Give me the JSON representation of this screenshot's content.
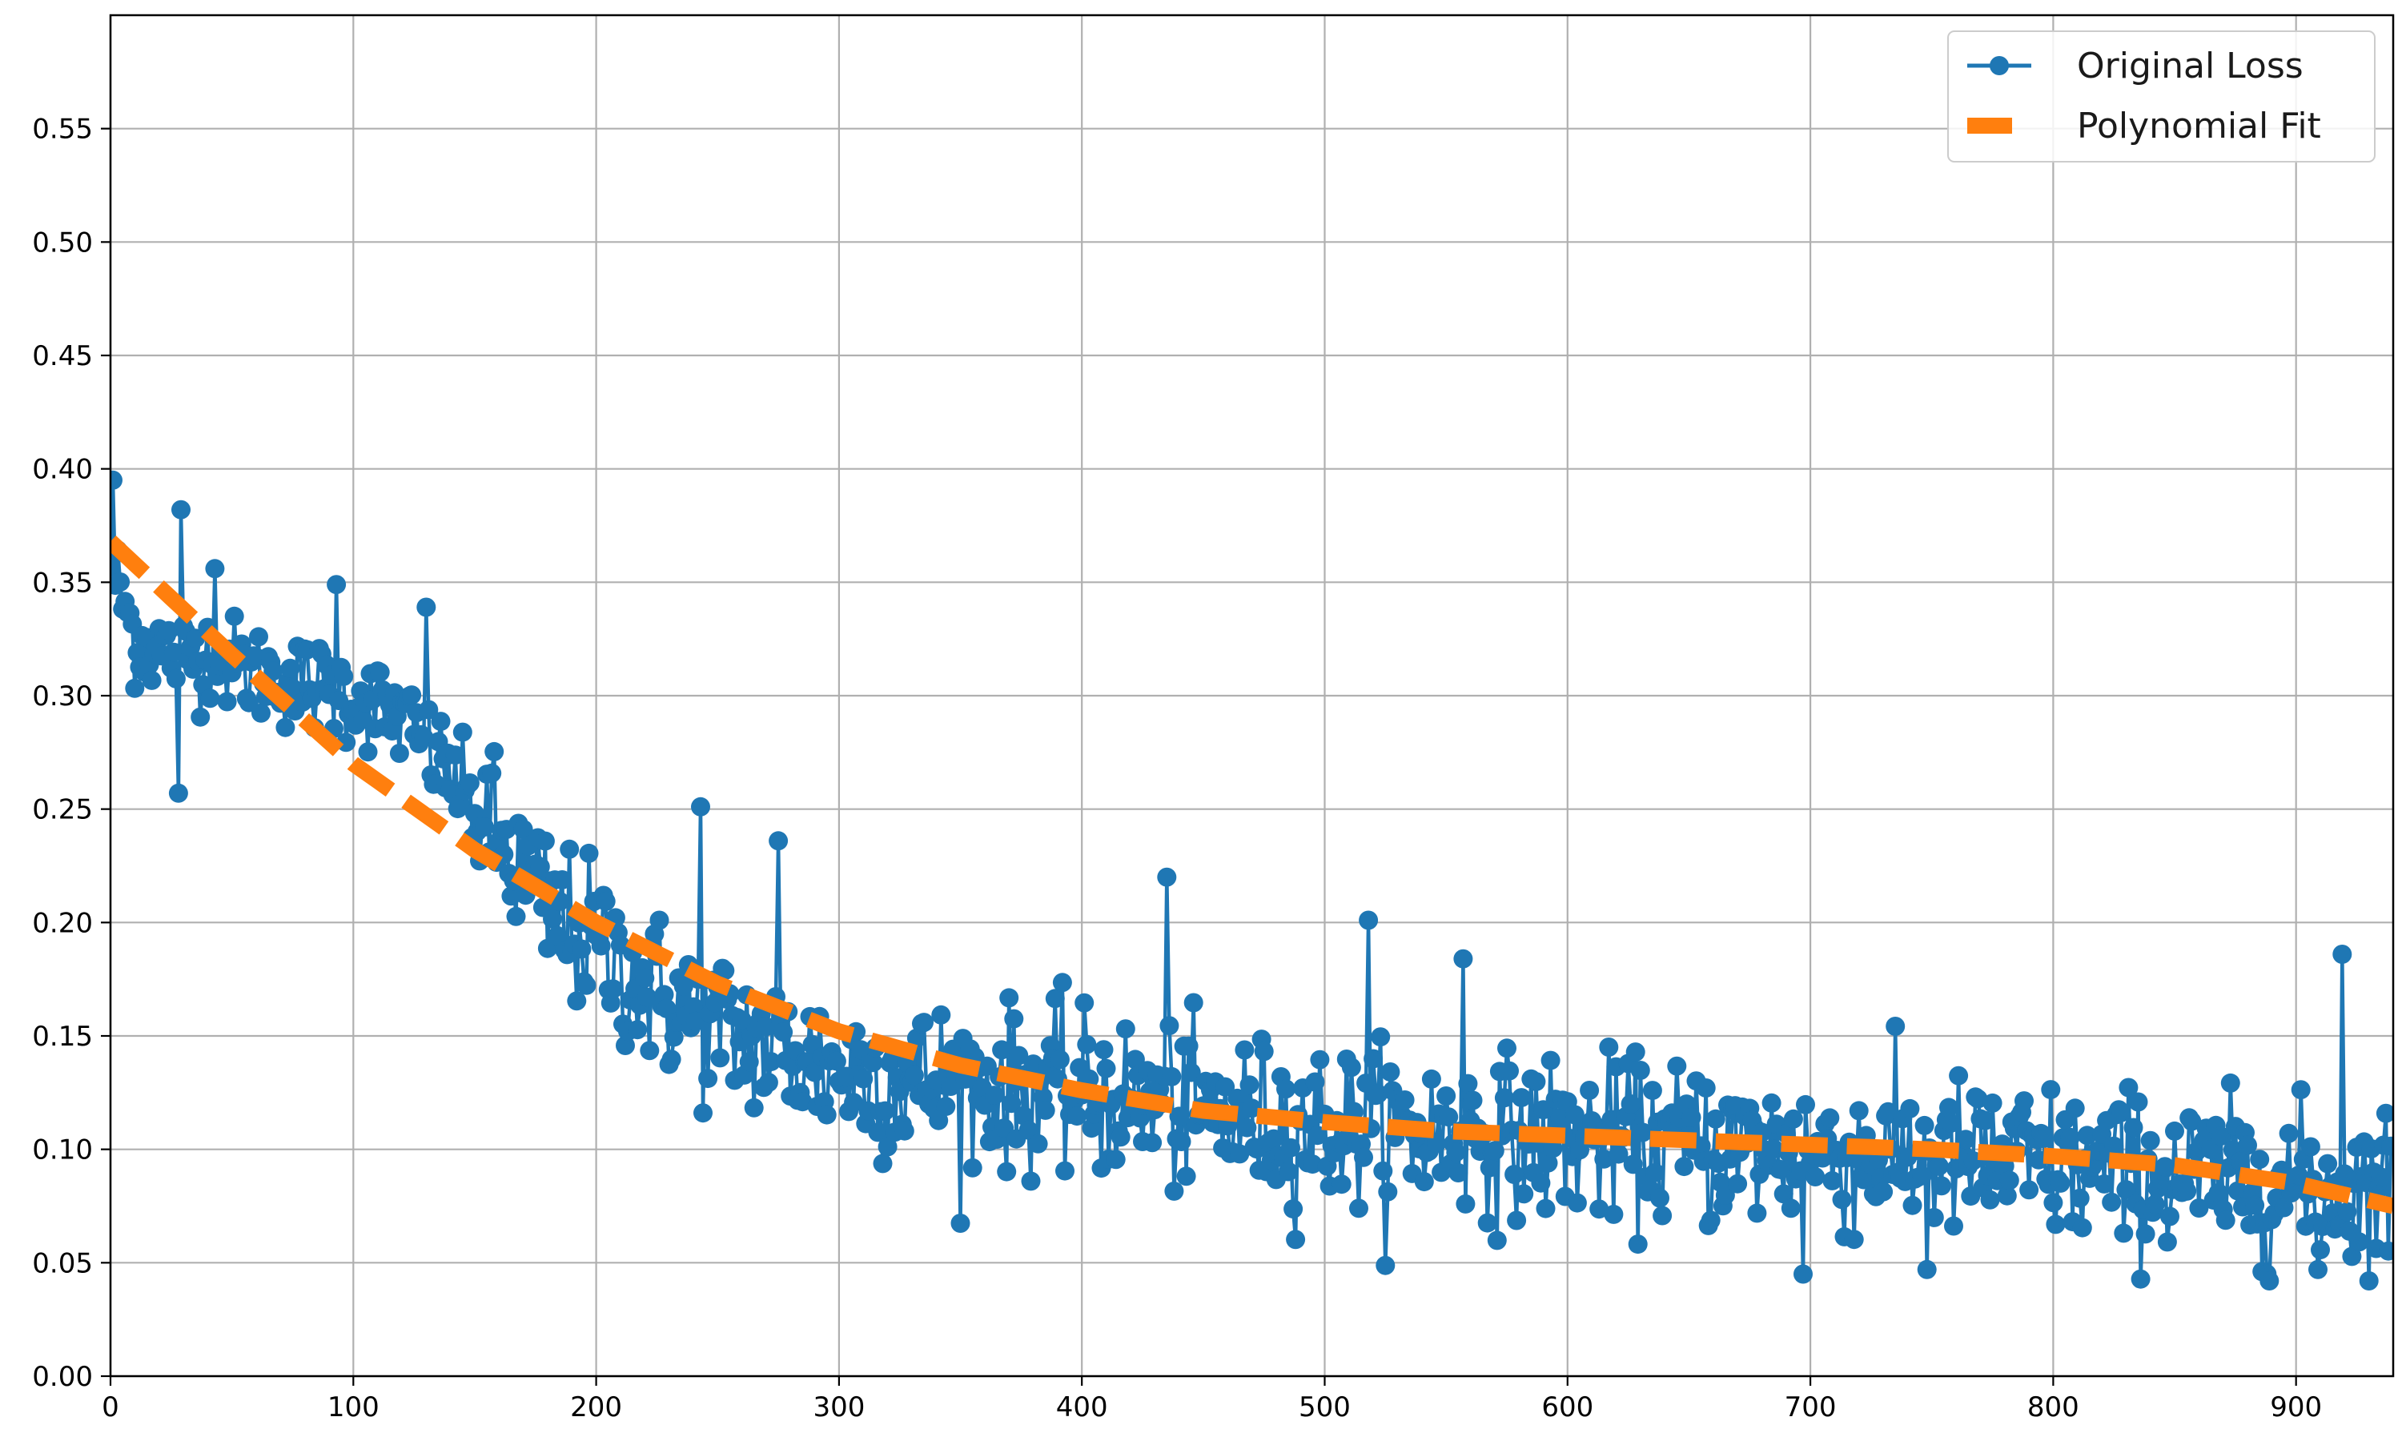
{
  "chart_data": {
    "type": "line",
    "title": "",
    "xlabel": "",
    "ylabel": "",
    "xlim": [
      0,
      940
    ],
    "ylim": [
      0,
      0.6
    ],
    "x_ticks": [
      0,
      100,
      200,
      300,
      400,
      500,
      600,
      700,
      800,
      900
    ],
    "x_tick_labels": [
      "0",
      "100",
      "200",
      "300",
      "400",
      "500",
      "600",
      "700",
      "800",
      "900"
    ],
    "y_ticks": [
      0,
      0.05,
      0.1,
      0.15,
      0.2,
      0.25,
      0.3,
      0.35,
      0.4,
      0.45,
      0.5,
      0.55
    ],
    "y_tick_labels": [
      "0.00",
      "0.05",
      "0.10",
      "0.15",
      "0.20",
      "0.25",
      "0.30",
      "0.35",
      "0.40",
      "0.45",
      "0.50",
      "0.55"
    ],
    "grid": true,
    "legend_position": "top-right",
    "series": [
      {
        "name": "Original Loss",
        "style": "line-with-circle-markers",
        "color": "#1f77b4",
        "anchors_x": [
          0,
          10,
          20,
          40,
          60,
          80,
          100,
          120,
          140,
          160,
          180,
          200,
          220,
          240,
          260,
          280,
          300,
          330,
          360,
          400,
          450,
          500,
          550,
          600,
          650,
          700,
          750,
          800,
          850,
          900,
          940
        ],
        "anchors_y": [
          0.36,
          0.325,
          0.32,
          0.318,
          0.31,
          0.305,
          0.3,
          0.29,
          0.265,
          0.235,
          0.205,
          0.19,
          0.172,
          0.158,
          0.15,
          0.142,
          0.135,
          0.13,
          0.128,
          0.125,
          0.115,
          0.11,
          0.107,
          0.105,
          0.102,
          0.098,
          0.096,
          0.093,
          0.088,
          0.084,
          0.082
        ],
        "noise_amplitude": 0.032,
        "num_points": 940,
        "notable_points": [
          {
            "x": 1,
            "y": 0.395
          },
          {
            "x": 29,
            "y": 0.382
          },
          {
            "x": 28,
            "y": 0.257
          },
          {
            "x": 43,
            "y": 0.356
          },
          {
            "x": 93,
            "y": 0.349
          },
          {
            "x": 130,
            "y": 0.339
          },
          {
            "x": 243,
            "y": 0.251
          },
          {
            "x": 275,
            "y": 0.236
          },
          {
            "x": 435,
            "y": 0.22
          },
          {
            "x": 518,
            "y": 0.201
          },
          {
            "x": 557,
            "y": 0.184
          },
          {
            "x": 697,
            "y": 0.045
          },
          {
            "x": 748,
            "y": 0.047
          },
          {
            "x": 919,
            "y": 0.186
          },
          {
            "x": 909,
            "y": 0.047
          }
        ]
      },
      {
        "name": "Polynomial Fit",
        "style": "thick-dashed",
        "color": "#ff7f0e",
        "x": [
          0,
          50,
          100,
          150,
          200,
          250,
          300,
          350,
          400,
          450,
          500,
          550,
          600,
          650,
          700,
          750,
          800,
          850,
          900,
          940
        ],
        "y": [
          0.368,
          0.318,
          0.27,
          0.232,
          0.2,
          0.173,
          0.152,
          0.137,
          0.126,
          0.117,
          0.112,
          0.108,
          0.106,
          0.104,
          0.102,
          0.1,
          0.097,
          0.093,
          0.085,
          0.075
        ]
      }
    ]
  }
}
